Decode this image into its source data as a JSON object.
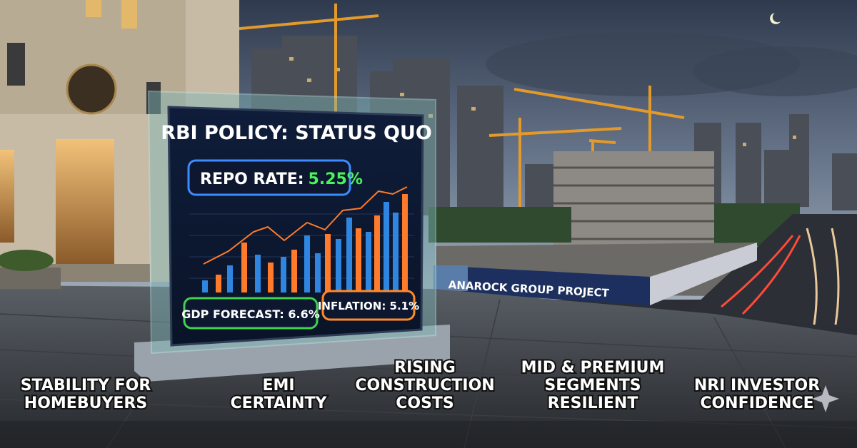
{
  "screen": {
    "title": "RBI POLICY: STATUS QUO",
    "repo_rate": {
      "label": "REPO RATE:",
      "value": "5.25%"
    },
    "gdp_forecast": "GDP FORECAST: 6.6%",
    "inflation": "INFLATION: 5.1%"
  },
  "hoarding": "ANAROCK GROUP PROJECT",
  "captions": [
    {
      "lines": [
        "STABILITY FOR",
        "HOMEBUYERS"
      ]
    },
    {
      "lines": [
        "EMI",
        "CERTAINTY"
      ]
    },
    {
      "lines": [
        "RISING",
        "CONSTRUCTION",
        "COSTS"
      ]
    },
    {
      "lines": [
        "MID & PREMIUM",
        "SEGMENTS",
        "RESILIENT"
      ]
    },
    {
      "lines": [
        "NRI INVESTOR",
        "CONFIDENCE"
      ]
    }
  ]
}
